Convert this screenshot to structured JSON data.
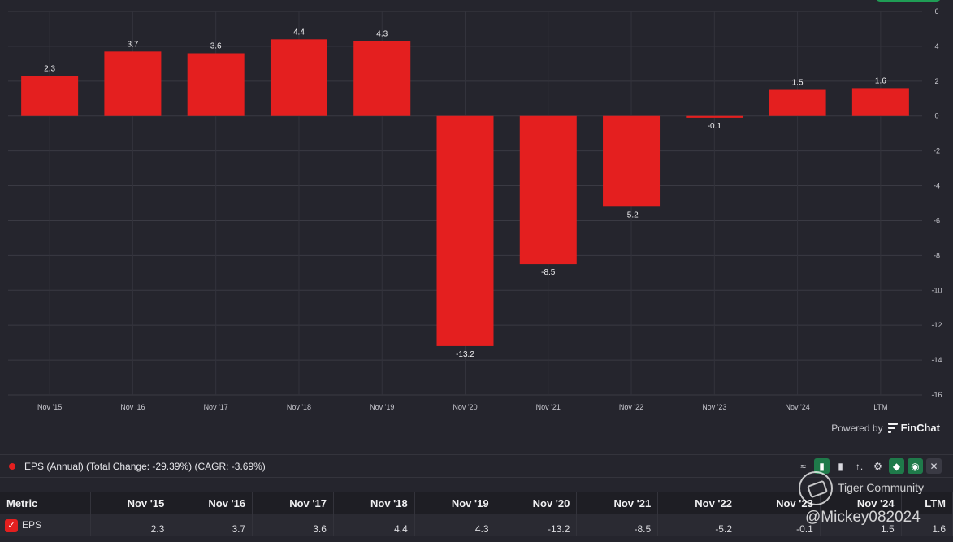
{
  "chart_data": {
    "type": "bar",
    "categories": [
      "Nov '15",
      "Nov '16",
      "Nov '17",
      "Nov '18",
      "Nov '19",
      "Nov '20",
      "Nov '21",
      "Nov '22",
      "Nov '23",
      "Nov '24",
      "LTM"
    ],
    "values": [
      2.3,
      3.7,
      3.6,
      4.4,
      4.3,
      -13.2,
      -8.5,
      -5.2,
      -0.1,
      1.5,
      1.6
    ],
    "title": "",
    "xlabel": "",
    "ylabel": "",
    "ylim": [
      -16,
      6
    ],
    "yticks": [
      6,
      4,
      2,
      0,
      -2,
      -4,
      -6,
      -8,
      -10,
      -12,
      -14,
      -16
    ],
    "grid": true,
    "bar_color": "#e41f1f"
  },
  "powered_by": {
    "label": "Powered by",
    "brand": "FinChat"
  },
  "legend": {
    "text": "EPS (Annual) (Total Change: -29.39%) (CAGR: -3.69%)",
    "color": "#e41f1f",
    "tools": [
      {
        "icon": "line-chart-icon",
        "glyph": "≈",
        "active": false
      },
      {
        "icon": "bar-chart-icon",
        "glyph": "▮",
        "active": true
      },
      {
        "icon": "grouped-bar-icon",
        "glyph": "▮",
        "active": false
      },
      {
        "icon": "sort-icon",
        "glyph": "↑.",
        "active": false
      },
      {
        "icon": "gear-icon",
        "glyph": "⚙",
        "active": false
      },
      {
        "icon": "tag-icon",
        "glyph": "◆",
        "active": true
      },
      {
        "icon": "eye-icon",
        "glyph": "◉",
        "active": true
      },
      {
        "icon": "close-icon",
        "glyph": "✕",
        "active": false
      }
    ]
  },
  "table": {
    "metric_header": "Metric",
    "columns": [
      "Nov '15",
      "Nov '16",
      "Nov '17",
      "Nov '18",
      "Nov '19",
      "Nov '20",
      "Nov '21",
      "Nov '22",
      "Nov '23",
      "Nov '24",
      "LTM"
    ],
    "row_label": "EPS",
    "row_values": [
      "2.3",
      "3.7",
      "3.6",
      "4.4",
      "4.3",
      "-13.2",
      "-8.5",
      "-5.2",
      "-0.1",
      "1.5",
      "1.6"
    ],
    "check_glyph": "✓"
  },
  "watermark": {
    "title": "Tiger Community",
    "user": "@Mickey082024"
  }
}
